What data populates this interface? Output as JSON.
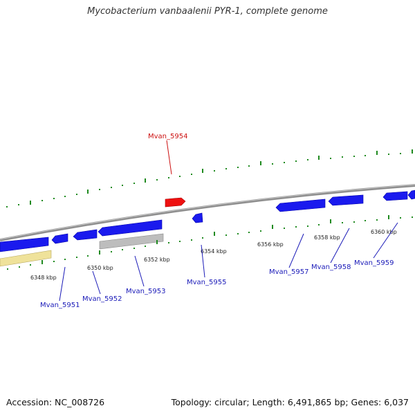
{
  "title": "Mycobacterium vanbaalenii PYR-1, complete genome",
  "footer": {
    "accession": "Accession: NC_008726",
    "summary": "Topology: circular; Length: 6,491,865 bp; Genes: 6,037"
  },
  "colors": {
    "backbone": "#888888",
    "gene_forward": "#1a1aee",
    "gene_reverse": "#1a1aee",
    "gene_highlight": "#ee1111",
    "gene_grey": "#b8b8b8",
    "gene_yellow": "#efe29a",
    "tick_green": "#1f8a1f",
    "label_blue": "#1a1ab8",
    "label_red": "#cc1111"
  },
  "genes": [
    {
      "id": "Mvan_5951"
    },
    {
      "id": "Mvan_5952"
    },
    {
      "id": "Mvan_5953"
    },
    {
      "id": "Mvan_5954"
    },
    {
      "id": "Mvan_5955"
    },
    {
      "id": "Mvan_5957"
    },
    {
      "id": "Mvan_5958"
    },
    {
      "id": "Mvan_5959"
    }
  ],
  "scale_labels": [
    "6348 kbp",
    "6350 kbp",
    "6352 kbp",
    "6354 kbp",
    "6356 kbp",
    "6358 kbp",
    "6360 kbp"
  ]
}
